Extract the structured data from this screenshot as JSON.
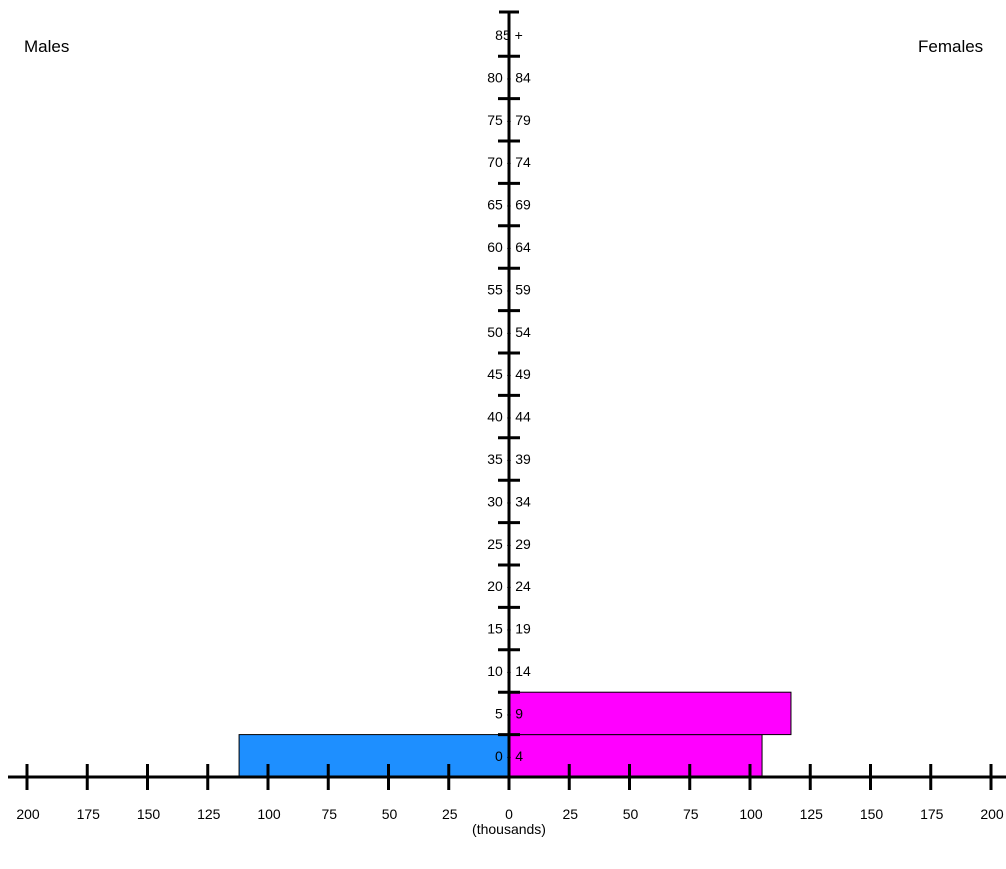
{
  "labels": {
    "left": "Males",
    "right": "Females",
    "unit": "(thousands)"
  },
  "chart_data": {
    "type": "bar",
    "orientation": "horizontal-population-pyramid",
    "categories": [
      "0 - 4",
      "5 - 9",
      "10 - 14",
      "15 - 19",
      "20 - 24",
      "25 - 29",
      "30 - 34",
      "35 - 39",
      "40 - 44",
      "45 - 49",
      "50 - 54",
      "55 - 59",
      "60 - 64",
      "65 - 69",
      "70 - 74",
      "75 - 79",
      "80 - 84",
      "85 +"
    ],
    "series": [
      {
        "name": "Males",
        "color": "#1e8fff",
        "values": [
          112,
          0,
          0,
          0,
          0,
          0,
          0,
          0,
          0,
          0,
          0,
          0,
          0,
          0,
          0,
          0,
          0,
          0
        ]
      },
      {
        "name": "Females",
        "color": "#ff00ff",
        "values": [
          105,
          117,
          0,
          0,
          0,
          0,
          0,
          0,
          0,
          0,
          0,
          0,
          0,
          0,
          0,
          0,
          0,
          0
        ]
      }
    ],
    "xlim": [
      0,
      200
    ],
    "xticks": [
      0,
      25,
      50,
      75,
      100,
      125,
      150,
      175,
      200
    ],
    "xlabel": "(thousands)",
    "grid": false
  }
}
